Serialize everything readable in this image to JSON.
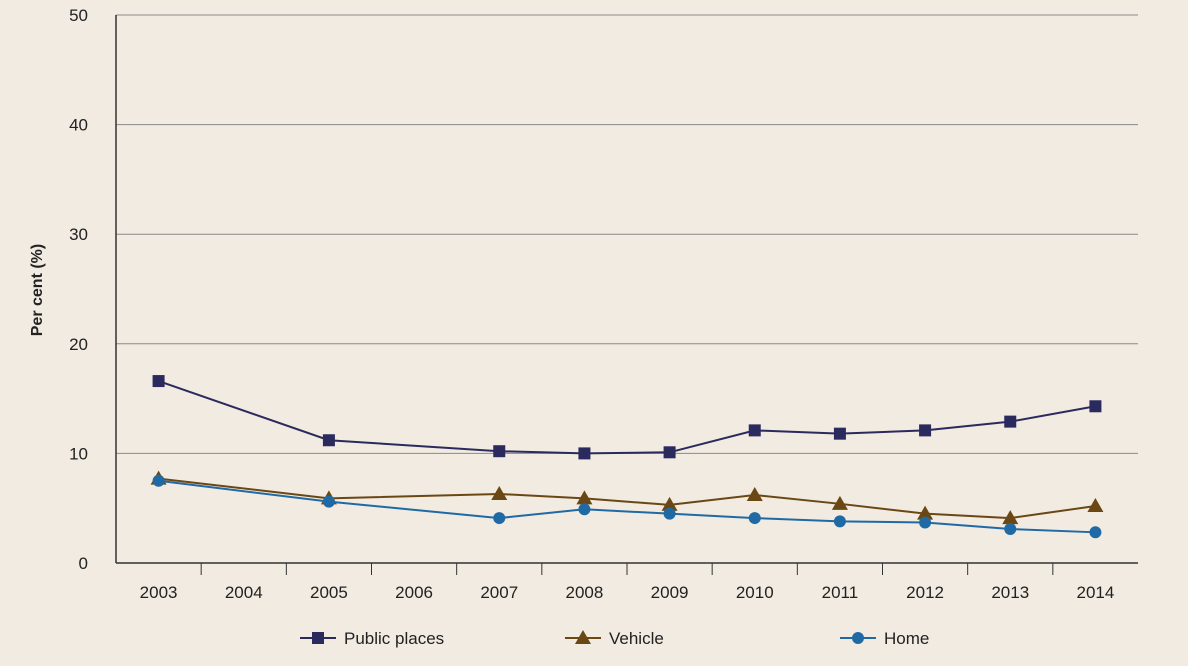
{
  "chart_data": {
    "type": "line",
    "title": "",
    "xlabel": "",
    "ylabel": "Per cent (%)",
    "ylim": [
      0,
      50
    ],
    "yticks": [
      0,
      10,
      20,
      30,
      40,
      50
    ],
    "categories": [
      "2003",
      "2004",
      "2005",
      "2006",
      "2007",
      "2008",
      "2009",
      "2010",
      "2011",
      "2012",
      "2013",
      "2014"
    ],
    "grid": "horizontal",
    "legend_position": "bottom",
    "series": [
      {
        "name": "Public places",
        "marker": "square",
        "color": "#2b2a5e",
        "points": [
          {
            "x": "2003",
            "y": 16.6
          },
          {
            "x": "2005",
            "y": 11.2
          },
          {
            "x": "2007",
            "y": 10.2
          },
          {
            "x": "2008",
            "y": 10.0
          },
          {
            "x": "2009",
            "y": 10.1
          },
          {
            "x": "2010",
            "y": 12.1
          },
          {
            "x": "2011",
            "y": 11.8
          },
          {
            "x": "2012",
            "y": 12.1
          },
          {
            "x": "2013",
            "y": 12.9
          },
          {
            "x": "2014",
            "y": 14.3
          }
        ]
      },
      {
        "name": "Vehicle",
        "marker": "triangle",
        "color": "#6b4714",
        "points": [
          {
            "x": "2003",
            "y": 7.7
          },
          {
            "x": "2005",
            "y": 5.9
          },
          {
            "x": "2007",
            "y": 6.3
          },
          {
            "x": "2008",
            "y": 5.9
          },
          {
            "x": "2009",
            "y": 5.3
          },
          {
            "x": "2010",
            "y": 6.2
          },
          {
            "x": "2011",
            "y": 5.4
          },
          {
            "x": "2012",
            "y": 4.5
          },
          {
            "x": "2013",
            "y": 4.1
          },
          {
            "x": "2014",
            "y": 5.2
          }
        ]
      },
      {
        "name": "Home",
        "marker": "circle",
        "color": "#1f6aa5",
        "points": [
          {
            "x": "2003",
            "y": 7.5
          },
          {
            "x": "2005",
            "y": 5.6
          },
          {
            "x": "2007",
            "y": 4.1
          },
          {
            "x": "2008",
            "y": 4.9
          },
          {
            "x": "2009",
            "y": 4.5
          },
          {
            "x": "2010",
            "y": 4.1
          },
          {
            "x": "2011",
            "y": 3.8
          },
          {
            "x": "2012",
            "y": 3.7
          },
          {
            "x": "2013",
            "y": 3.1
          },
          {
            "x": "2014",
            "y": 2.8
          }
        ]
      }
    ]
  }
}
